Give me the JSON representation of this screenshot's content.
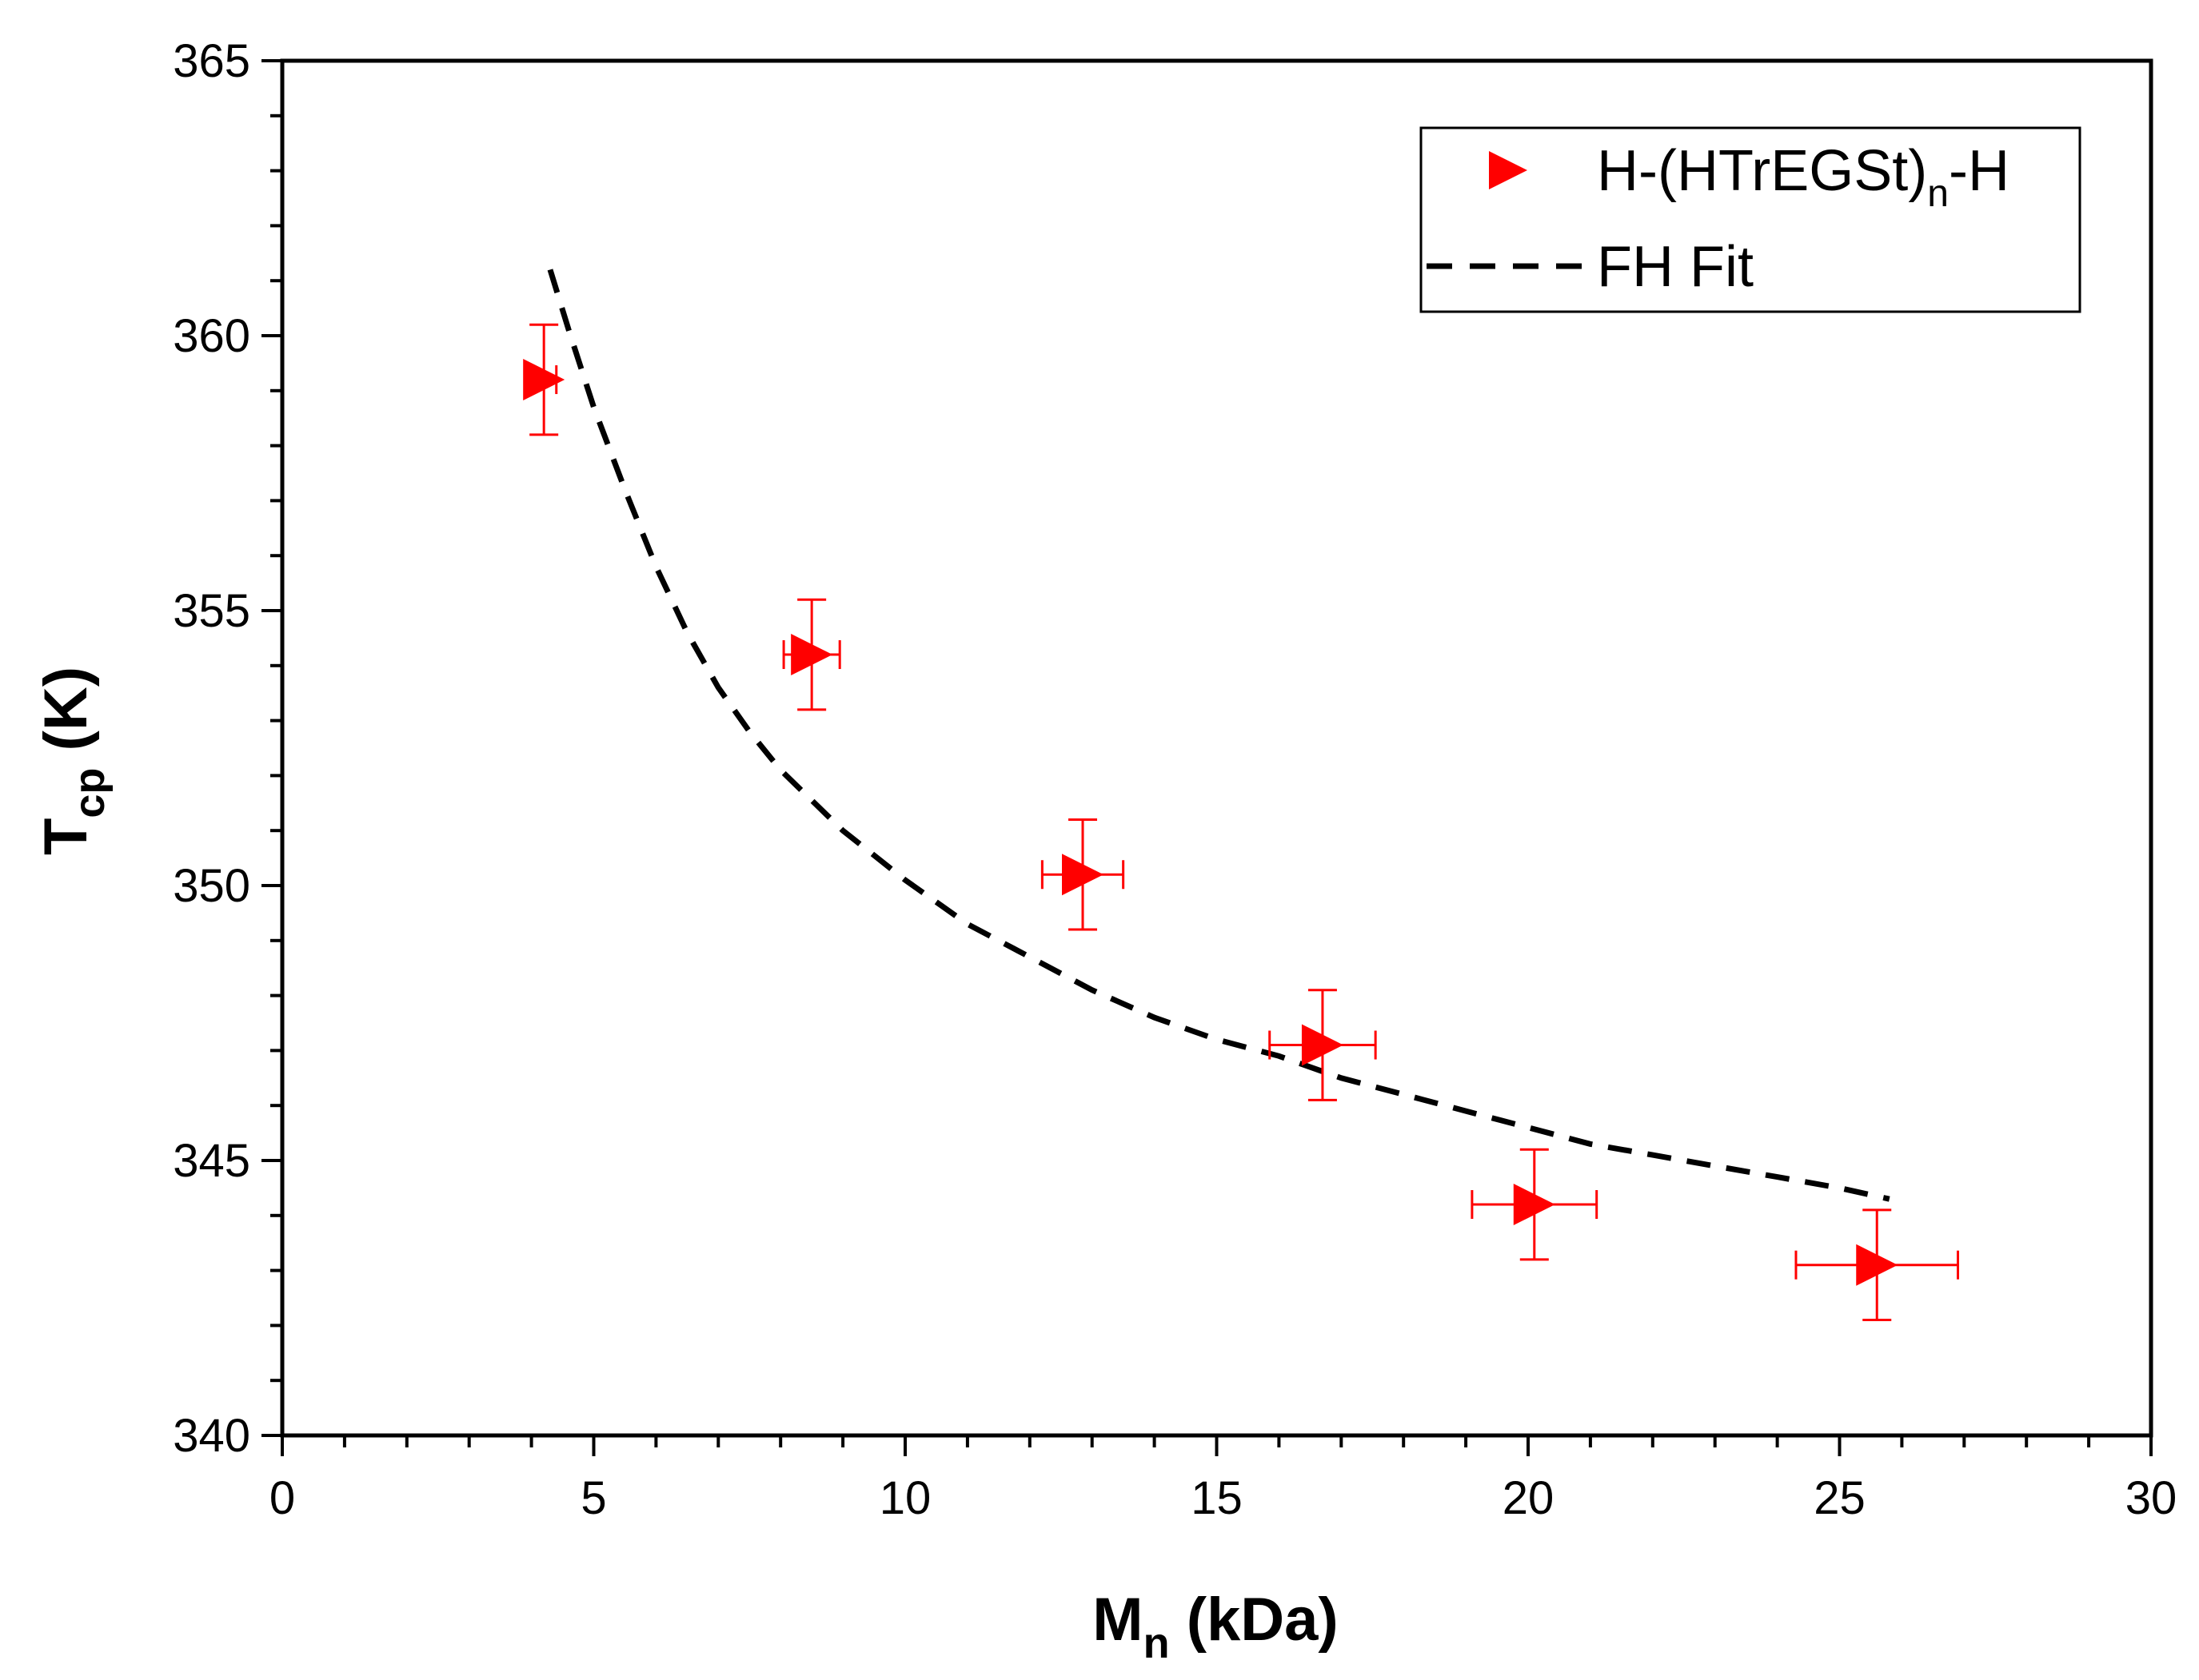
{
  "chart_data": {
    "type": "scatter",
    "title": "",
    "xlabel": {
      "main": "M",
      "sub": "n",
      "rest": " (kDa)"
    },
    "ylabel": {
      "main": "T",
      "sub": "cp",
      "rest": " (K)"
    },
    "xlim": [
      0,
      30
    ],
    "ylim": [
      340,
      365
    ],
    "xticks": [
      0,
      5,
      10,
      15,
      20,
      25,
      30
    ],
    "yticks": [
      340,
      345,
      350,
      355,
      360,
      365
    ],
    "xtick_labels": [
      "0",
      "5",
      "10",
      "15",
      "20",
      "25",
      "30"
    ],
    "ytick_labels": [
      "340",
      "345",
      "350",
      "355",
      "360",
      "365"
    ],
    "grid": false,
    "legend": {
      "placement": "top-right",
      "entries": [
        {
          "main": "H-(HTrEGSt)",
          "sub": "n",
          "rest": "-H",
          "kind": "marker"
        },
        {
          "main": "FH Fit",
          "sub": "",
          "rest": "",
          "kind": "dashed-line"
        }
      ]
    },
    "series": [
      {
        "name": "H-(HTrEGSt)n-H",
        "kind": "points",
        "color": "#ff0000",
        "marker": "right-triangle",
        "x": [
          4.2,
          8.5,
          12.85,
          16.7,
          20.1,
          25.6
        ],
        "y": [
          359.2,
          354.2,
          350.2,
          347.1,
          344.2,
          343.1
        ],
        "xerr": [
          0.2,
          0.45,
          0.65,
          0.85,
          1.0,
          1.3
        ],
        "yerr": [
          1.0,
          1.0,
          1.0,
          1.0,
          1.0,
          1.0
        ]
      },
      {
        "name": "FH Fit",
        "kind": "dashed-line",
        "color": "#000000",
        "x": [
          4.3,
          4.6,
          5,
          5.5,
          6,
          6.5,
          7,
          7.5,
          8,
          9,
          10,
          11,
          12,
          13,
          14,
          15,
          16,
          17,
          18,
          19,
          20,
          21,
          22,
          23,
          24,
          25,
          25.8
        ],
        "y": [
          361.2,
          360.1,
          358.7,
          357.2,
          355.8,
          354.6,
          353.6,
          352.8,
          352.1,
          351.0,
          350.1,
          349.3,
          348.7,
          348.1,
          347.6,
          347.2,
          346.9,
          346.5,
          346.2,
          345.9,
          345.6,
          345.3,
          345.1,
          344.9,
          344.7,
          344.5,
          344.3
        ]
      }
    ]
  }
}
